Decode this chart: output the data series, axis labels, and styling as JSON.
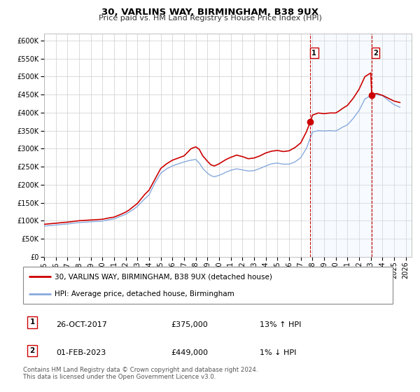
{
  "title": "30, VARLINS WAY, BIRMINGHAM, B38 9UX",
  "subtitle": "Price paid vs. HM Land Registry's House Price Index (HPI)",
  "xlim": [
    1995.0,
    2026.5
  ],
  "ylim": [
    0,
    620000
  ],
  "yticks": [
    0,
    50000,
    100000,
    150000,
    200000,
    250000,
    300000,
    350000,
    400000,
    450000,
    500000,
    550000,
    600000
  ],
  "xticks": [
    1995,
    1996,
    1997,
    1998,
    1999,
    2000,
    2001,
    2002,
    2003,
    2004,
    2005,
    2006,
    2007,
    2008,
    2009,
    2010,
    2011,
    2012,
    2013,
    2014,
    2015,
    2016,
    2017,
    2018,
    2019,
    2020,
    2021,
    2022,
    2023,
    2024,
    2025,
    2026
  ],
  "vline1_x": 2017.82,
  "vline2_x": 2023.08,
  "marker1_x": 2017.82,
  "marker1_y": 375000,
  "marker2_x": 2023.08,
  "marker2_y": 449000,
  "marker_color": "#cc0000",
  "marker_size": 6,
  "red_line_color": "#cc0000",
  "blue_line_color": "#88aadd",
  "blue_fill_color": "#ddeeff",
  "vline_color": "#cc0000",
  "background_color": "#ffffff",
  "grid_color": "#cccccc",
  "legend1_label": "30, VARLINS WAY, BIRMINGHAM, B38 9UX (detached house)",
  "legend2_label": "HPI: Average price, detached house, Birmingham",
  "ann1_label": "1",
  "ann2_label": "2",
  "ann1_date": "26-OCT-2017",
  "ann1_price": "£375,000",
  "ann1_hpi": "13% ↑ HPI",
  "ann2_date": "01-FEB-2023",
  "ann2_price": "£449,000",
  "ann2_hpi": "1% ↓ HPI",
  "footer1": "Contains HM Land Registry data © Crown copyright and database right 2024.",
  "footer2": "This data is licensed under the Open Government Licence v3.0.",
  "red_line_x": [
    1995.0,
    1995.3,
    1995.6,
    1996.0,
    1996.3,
    1996.6,
    1997.0,
    1997.5,
    1998.0,
    1998.5,
    1999.0,
    1999.5,
    2000.0,
    2000.3,
    2000.6,
    2001.0,
    2001.3,
    2001.6,
    2002.0,
    2002.3,
    2002.6,
    2003.0,
    2003.3,
    2003.6,
    2004.0,
    2004.5,
    2005.0,
    2005.5,
    2006.0,
    2006.5,
    2007.0,
    2007.3,
    2007.6,
    2008.0,
    2008.3,
    2008.6,
    2009.0,
    2009.3,
    2009.6,
    2010.0,
    2010.3,
    2010.6,
    2011.0,
    2011.5,
    2012.0,
    2012.5,
    2013.0,
    2013.5,
    2014.0,
    2014.5,
    2015.0,
    2015.5,
    2016.0,
    2016.5,
    2017.0,
    2017.5,
    2017.82,
    2018.0,
    2018.5,
    2019.0,
    2019.5,
    2020.0,
    2020.3,
    2020.6,
    2021.0,
    2021.5,
    2022.0,
    2022.5,
    2023.0,
    2023.08,
    2023.5,
    2024.0,
    2024.5,
    2025.0,
    2025.5
  ],
  "red_line_y": [
    90000,
    91000,
    92000,
    93000,
    94000,
    95000,
    96000,
    98000,
    100000,
    101000,
    102000,
    103000,
    104000,
    106000,
    108000,
    110000,
    114000,
    118000,
    124000,
    130000,
    138000,
    148000,
    160000,
    172000,
    185000,
    215000,
    245000,
    258000,
    268000,
    274000,
    280000,
    290000,
    300000,
    305000,
    298000,
    280000,
    265000,
    255000,
    252000,
    258000,
    264000,
    270000,
    276000,
    282000,
    278000,
    272000,
    274000,
    280000,
    288000,
    293000,
    295000,
    292000,
    294000,
    303000,
    316000,
    348000,
    375000,
    393000,
    399000,
    397000,
    399000,
    399000,
    405000,
    412000,
    420000,
    440000,
    465000,
    500000,
    510000,
    449000,
    453000,
    448000,
    440000,
    432000,
    428000
  ],
  "blue_line_x": [
    1995.0,
    1995.3,
    1995.6,
    1996.0,
    1996.3,
    1996.6,
    1997.0,
    1997.5,
    1998.0,
    1998.5,
    1999.0,
    1999.5,
    2000.0,
    2000.3,
    2000.6,
    2001.0,
    2001.3,
    2001.6,
    2002.0,
    2002.3,
    2002.6,
    2003.0,
    2003.3,
    2003.6,
    2004.0,
    2004.5,
    2005.0,
    2005.5,
    2006.0,
    2006.5,
    2007.0,
    2007.3,
    2007.6,
    2008.0,
    2008.3,
    2008.6,
    2009.0,
    2009.3,
    2009.6,
    2010.0,
    2010.3,
    2010.6,
    2011.0,
    2011.5,
    2012.0,
    2012.5,
    2013.0,
    2013.5,
    2014.0,
    2014.5,
    2015.0,
    2015.5,
    2016.0,
    2016.5,
    2017.0,
    2017.5,
    2017.82,
    2018.0,
    2018.5,
    2019.0,
    2019.5,
    2020.0,
    2020.3,
    2020.6,
    2021.0,
    2021.5,
    2022.0,
    2022.5,
    2023.0,
    2023.08,
    2023.5,
    2024.0,
    2024.5,
    2025.0,
    2025.5
  ],
  "blue_line_y": [
    85000,
    86000,
    87000,
    88000,
    89000,
    90000,
    91000,
    93000,
    95000,
    96000,
    97000,
    98000,
    99000,
    101000,
    103000,
    105000,
    109000,
    113000,
    118000,
    124000,
    130000,
    140000,
    150000,
    160000,
    172000,
    205000,
    232000,
    244000,
    252000,
    258000,
    263000,
    266000,
    268000,
    270000,
    260000,
    245000,
    232000,
    225000,
    222000,
    226000,
    230000,
    235000,
    240000,
    244000,
    241000,
    238000,
    239000,
    245000,
    252000,
    258000,
    260000,
    257000,
    257000,
    263000,
    275000,
    302000,
    330000,
    346000,
    350000,
    349000,
    350000,
    349000,
    354000,
    360000,
    366000,
    384000,
    406000,
    438000,
    447000,
    449000,
    450000,
    447000,
    434000,
    422000,
    415000
  ]
}
